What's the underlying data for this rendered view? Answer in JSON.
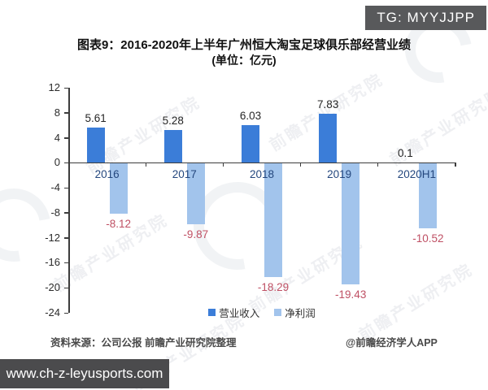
{
  "badges": {
    "top_right": "TG: MYYJJPP",
    "bottom_left": "www.ch-z-leyusports.com"
  },
  "title": {
    "line1": "图表9：2016-2020年上半年广州恒大淘宝足球俱乐部经营业绩",
    "line2": "(单位：亿元)"
  },
  "footer": {
    "source": "资料来源：公司公报 前瞻产业研究院整理",
    "credit": "@前瞻经济学人APP"
  },
  "watermark": {
    "text": "前瞻产业研究院"
  },
  "colors": {
    "revenue": "#3b7dd8",
    "profit": "#a2c4ec",
    "positive_label": "#262626",
    "negative_label": "#bf5064",
    "year_label": "#24477e",
    "axis": "#3c3c3c",
    "tick_label": "#2b2b2b",
    "legend_text": "#333333"
  },
  "chart_data": {
    "type": "bar",
    "title": "图表9：2016-2020年上半年广州恒大淘宝足球俱乐部经营业绩",
    "unit_label": "(单位：亿元)",
    "categories": [
      "2016",
      "2017",
      "2018",
      "2019",
      "2020H1"
    ],
    "series": [
      {
        "name": "营业收入",
        "values": [
          5.61,
          5.28,
          6.03,
          7.83,
          0.1
        ],
        "color": "#3b7dd8"
      },
      {
        "name": "净利润",
        "values": [
          -8.12,
          -9.87,
          -18.29,
          -19.43,
          -10.52
        ],
        "color": "#a2c4ec"
      }
    ],
    "ylim": [
      -24,
      12
    ],
    "ytick_step": 4,
    "grid": false,
    "legend_position": "bottom"
  }
}
